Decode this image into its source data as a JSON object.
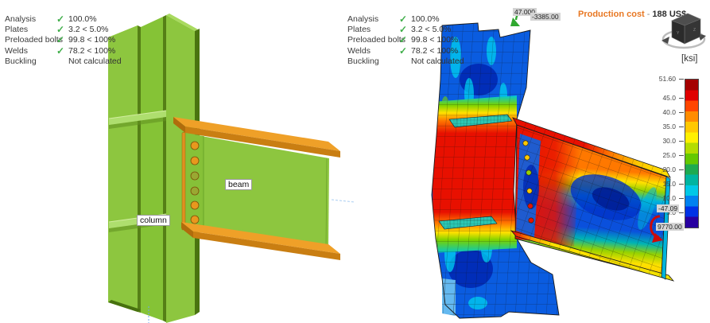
{
  "icons": {
    "check": "✓",
    "view_cube": "view-cube-icon"
  },
  "left_view": {
    "checklist": {
      "rows": [
        {
          "label": "Analysis",
          "value": "100.0%",
          "passed": true
        },
        {
          "label": "Plates",
          "value": "3.2 < 5.0%",
          "passed": true
        },
        {
          "label": "Preloaded bolts",
          "value": "99.8 < 100%",
          "passed": true
        },
        {
          "label": "Welds",
          "value": "78.2 < 100%",
          "passed": true
        },
        {
          "label": "Buckling",
          "value": "Not calculated",
          "passed": false
        }
      ]
    },
    "labels": {
      "column": "column",
      "beam": "beam"
    },
    "colors": {
      "steel_green": "#8dc63f",
      "steel_green_dark": "#4a7410",
      "plate_orange": "#efa028",
      "bolt_orange": "#e8981e",
      "bolt_olive": "#9aa832",
      "status_green": "#3fae49"
    }
  },
  "right_view": {
    "checklist": {
      "rows": [
        {
          "label": "Analysis",
          "value": "100.0%",
          "passed": true
        },
        {
          "label": "Plates",
          "value": "3.2 < 5.0%",
          "passed": true
        },
        {
          "label": "Preloaded bolts",
          "value": "99.8 < 100%",
          "passed": true
        },
        {
          "label": "Welds",
          "value": "78.2 < 100%",
          "passed": true
        },
        {
          "label": "Buckling",
          "value": "Not calculated",
          "passed": false
        }
      ]
    },
    "production_cost": {
      "label": "Production cost",
      "separator": "-",
      "value": "188 US$",
      "label_color": "#e87722"
    },
    "annotations": {
      "moment_top_value": "47.000",
      "moment_top_value2": "-3385.00",
      "reaction_bottom_value": "-47.09",
      "reaction_bottom_value2": "9770.00"
    },
    "legend": {
      "unit": "[ksi]",
      "max": 51.6,
      "ticks": [
        {
          "label": "51.60",
          "value": 51.6
        },
        {
          "label": "45.0",
          "value": 45
        },
        {
          "label": "40.0",
          "value": 40
        },
        {
          "label": "35.0",
          "value": 35
        },
        {
          "label": "30.0",
          "value": 30
        },
        {
          "label": "25.0",
          "value": 25
        },
        {
          "label": "20.0",
          "value": 20
        },
        {
          "label": "15.0",
          "value": 15
        },
        {
          "label": "10.0",
          "value": 10
        },
        {
          "label": "5.0",
          "value": 5
        },
        {
          "label": "0.00",
          "value": 0
        }
      ],
      "band_colors": [
        "#a50000",
        "#e00000",
        "#ff4600",
        "#ff8c00",
        "#ffc800",
        "#fff000",
        "#b4dc00",
        "#64c800",
        "#1eaa50",
        "#00b4a0",
        "#00c8e6",
        "#0082f0",
        "#0032e6",
        "#2800a0"
      ]
    }
  }
}
